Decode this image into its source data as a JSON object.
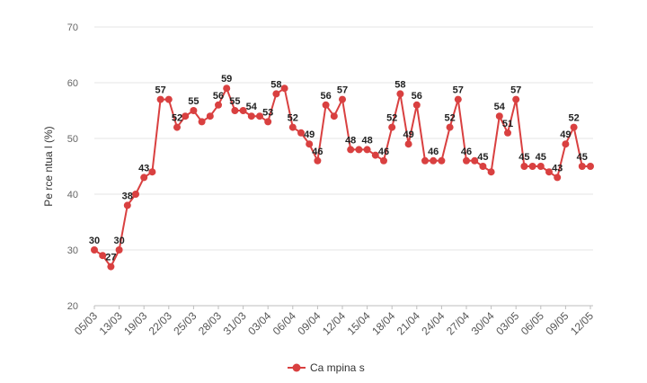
{
  "chart_data": {
    "type": "line",
    "ylabel": "Pe rce ntua l (%)",
    "ylim": [
      20,
      70
    ],
    "yticks": [
      20,
      30,
      40,
      50,
      60,
      70
    ],
    "grid": true,
    "legend_position": "bottom",
    "color": "#d94040",
    "x_tick_labels": [
      "05/03",
      "13/03",
      "19/03",
      "22/03",
      "25/03",
      "28/03",
      "31/03",
      "03/04",
      "06/04",
      "09/04",
      "12/04",
      "15/04",
      "18/04",
      "21/04",
      "24/04",
      "27/04",
      "30/04",
      "03/05",
      "06/05",
      "09/05",
      "12/05"
    ],
    "series": [
      {
        "name": "Ca mpina s",
        "values": [
          30,
          29,
          27,
          30,
          38,
          40,
          43,
          44,
          57,
          57,
          52,
          54,
          55,
          53,
          54,
          56,
          59,
          55,
          55,
          54,
          54,
          53,
          58,
          59,
          52,
          51,
          49,
          46,
          56,
          54,
          57,
          48,
          48,
          48,
          47,
          46,
          52,
          58,
          49,
          56,
          46,
          46,
          46,
          52,
          57,
          46,
          46,
          45,
          44,
          54,
          51,
          57,
          45,
          45,
          45,
          44,
          43,
          49,
          52,
          45,
          45
        ],
        "labeled_indices": [
          0,
          2,
          3,
          4,
          6,
          8,
          10,
          12,
          15,
          16,
          17,
          19,
          21,
          22,
          24,
          26,
          27,
          28,
          30,
          31,
          33,
          35,
          36,
          37,
          38,
          39,
          41,
          43,
          44,
          45,
          47,
          49,
          50,
          51,
          52,
          54,
          56,
          57,
          58,
          59
        ]
      }
    ]
  }
}
